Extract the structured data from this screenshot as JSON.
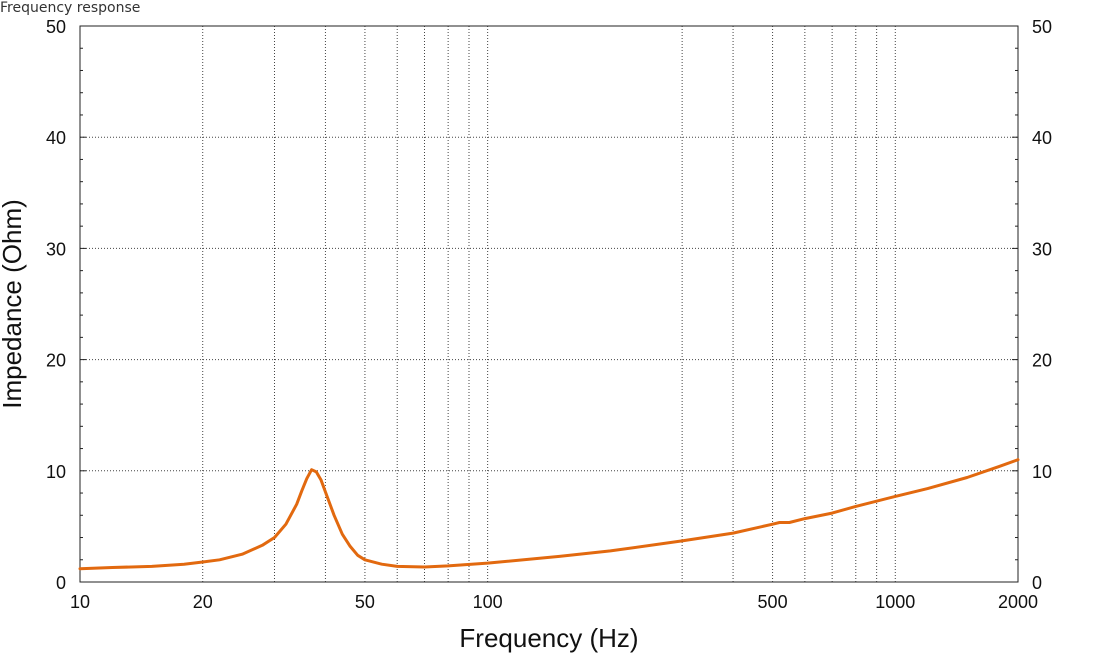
{
  "window": {
    "title": "Frequency response"
  },
  "chart_data": {
    "type": "line",
    "title": "",
    "xlabel": "Frequency (Hz)",
    "ylabel": "Impedance (Ohm)",
    "x_scale": "log",
    "xlim": [
      10,
      2000
    ],
    "ylim": [
      0,
      50
    ],
    "grid": true,
    "x_tick_labels": [
      {
        "value": 10,
        "label": "10"
      },
      {
        "value": 20,
        "label": "20"
      },
      {
        "value": 50,
        "label": "50"
      },
      {
        "value": 100,
        "label": "100"
      },
      {
        "value": 500,
        "label": "500"
      },
      {
        "value": 1000,
        "label": "1000"
      },
      {
        "value": 2000,
        "label": "2000"
      }
    ],
    "x_grid_values": [
      20,
      30,
      40,
      50,
      60,
      70,
      80,
      90,
      100,
      300,
      400,
      500,
      600,
      700,
      800,
      900,
      1000
    ],
    "y_ticks": [
      0,
      10,
      20,
      30,
      40,
      50
    ],
    "series": [
      {
        "color": "#e2690f",
        "points": [
          [
            10,
            1.2
          ],
          [
            12,
            1.3
          ],
          [
            15,
            1.4
          ],
          [
            18,
            1.6
          ],
          [
            20,
            1.8
          ],
          [
            22,
            2.0
          ],
          [
            25,
            2.5
          ],
          [
            28,
            3.3
          ],
          [
            30,
            4.0
          ],
          [
            32,
            5.2
          ],
          [
            34,
            7.0
          ],
          [
            35,
            8.2
          ],
          [
            36,
            9.3
          ],
          [
            37,
            10.1
          ],
          [
            38,
            9.9
          ],
          [
            39,
            9.2
          ],
          [
            40,
            8.1
          ],
          [
            42,
            6.0
          ],
          [
            44,
            4.3
          ],
          [
            46,
            3.2
          ],
          [
            48,
            2.4
          ],
          [
            50,
            2.0
          ],
          [
            55,
            1.6
          ],
          [
            60,
            1.4
          ],
          [
            70,
            1.35
          ],
          [
            80,
            1.45
          ],
          [
            100,
            1.7
          ],
          [
            150,
            2.3
          ],
          [
            200,
            2.8
          ],
          [
            300,
            3.7
          ],
          [
            400,
            4.4
          ],
          [
            500,
            5.2
          ],
          [
            520,
            5.35
          ],
          [
            550,
            5.35
          ],
          [
            600,
            5.7
          ],
          [
            700,
            6.2
          ],
          [
            800,
            6.8
          ],
          [
            1000,
            7.7
          ],
          [
            1200,
            8.4
          ],
          [
            1500,
            9.4
          ],
          [
            1800,
            10.4
          ],
          [
            2000,
            11.0
          ]
        ]
      }
    ]
  }
}
